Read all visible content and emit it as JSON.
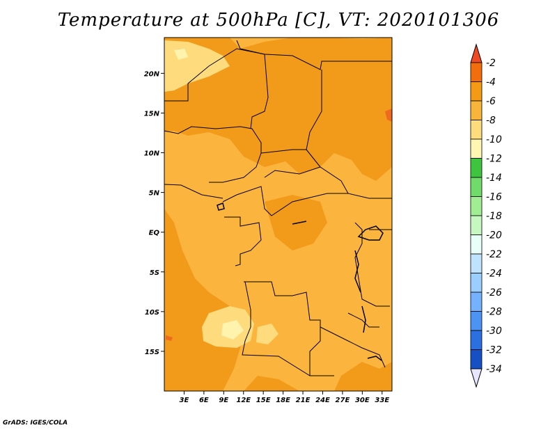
{
  "title": "Temperature at 500hPa [C], VT: 2020101306",
  "footer": "GrADS: IGES/COLA",
  "map": {
    "lon_range": [
      0,
      34.5
    ],
    "lat_range": [
      -20,
      24.5
    ],
    "lon_ticks": [
      "3E",
      "6E",
      "9E",
      "12E",
      "15E",
      "18E",
      "21E",
      "24E",
      "27E",
      "30E",
      "33E"
    ],
    "lon_tick_values": [
      3,
      6,
      9,
      12,
      15,
      18,
      21,
      24,
      27,
      30,
      33
    ],
    "lat_ticks": [
      "20N",
      "15N",
      "10N",
      "5N",
      "EQ",
      "5S",
      "10S",
      "15S"
    ],
    "lat_tick_values": [
      20,
      15,
      10,
      5,
      0,
      -5,
      -10,
      -15
    ],
    "background_color": "#fbb43e",
    "field_colors": {
      "-4": "#f29a1a",
      "-6": "#fab642",
      "-8": "#fedc7e",
      "-10": "#fff3ad",
      "-2": "#ed6a1e"
    }
  },
  "colorbar": {
    "labels": [
      "-2",
      "-4",
      "-6",
      "-8",
      "-10",
      "-12",
      "-14",
      "-16",
      "-18",
      "-20",
      "-22",
      "-24",
      "-26",
      "-28",
      "-30",
      "-32",
      "-34"
    ],
    "colors": [
      "#ef4a1f",
      "#f26e0c",
      "#f59a14",
      "#f7b53c",
      "#fcdc7c",
      "#fff6b2",
      "#3fc440",
      "#70db6a",
      "#a0ed94",
      "#c6f7c0",
      "#e7fff8",
      "#bfe3ff",
      "#99ceff",
      "#74b2ff",
      "#4d94f2",
      "#2c6fe0",
      "#1650c4",
      "#0d32a0"
    ],
    "top_arrow_color": "#f04a22",
    "bottom_arrow_color": "#e6e6ff",
    "bottom_segment_color": "#101a6e"
  }
}
